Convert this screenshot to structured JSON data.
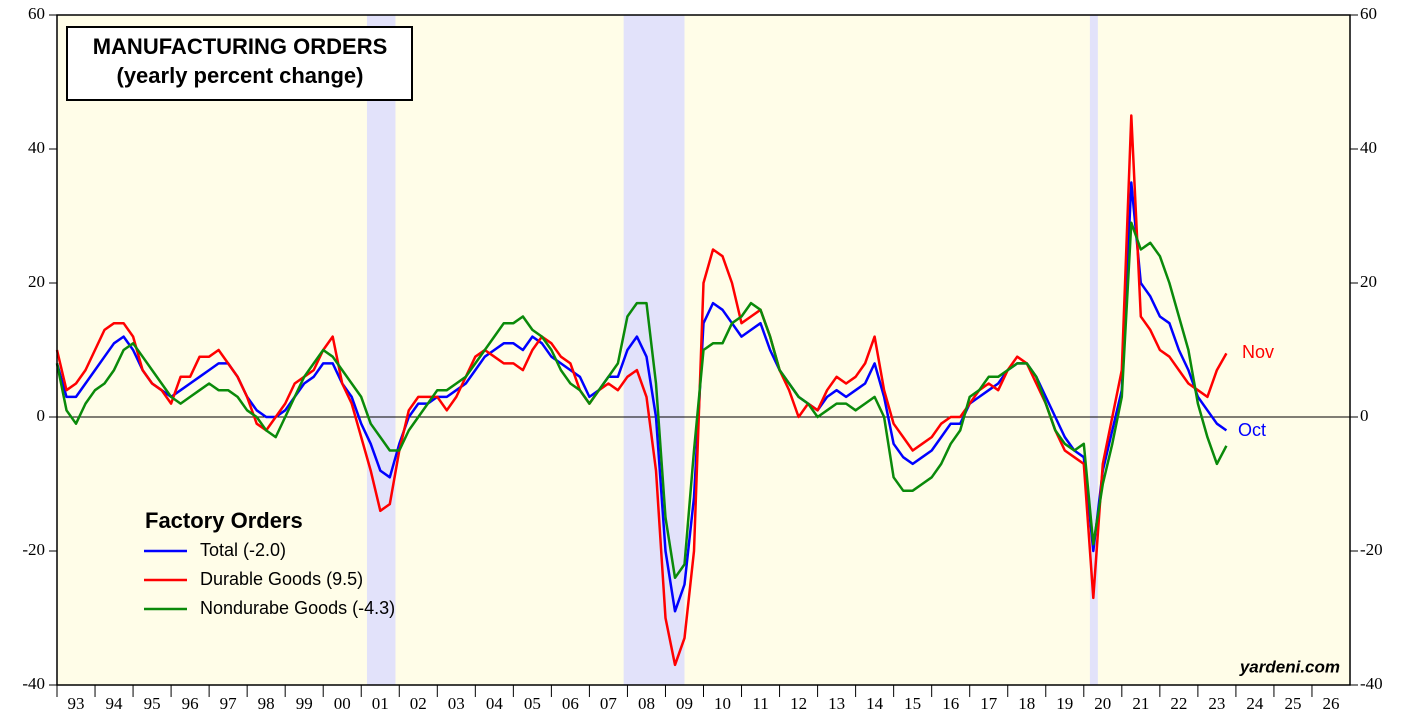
{
  "chart_data": {
    "type": "line",
    "title": "MANUFACTURING ORDERS",
    "subtitle": "(yearly percent change)",
    "legend_title": "Factory Orders",
    "annotations": [
      "Nov",
      "Oct"
    ],
    "source": "yardeni.com",
    "xlim": [
      1993,
      2027
    ],
    "ylim": [
      -40,
      60
    ],
    "yticks": [
      -40,
      -20,
      0,
      20,
      40,
      60
    ],
    "xticks": [
      {
        "value": 1993,
        "label": "93"
      },
      {
        "value": 1994,
        "label": "94"
      },
      {
        "value": 1995,
        "label": "95"
      },
      {
        "value": 1996,
        "label": "96"
      },
      {
        "value": 1997,
        "label": "97"
      },
      {
        "value": 1998,
        "label": "98"
      },
      {
        "value": 1999,
        "label": "99"
      },
      {
        "value": 2000,
        "label": "00"
      },
      {
        "value": 2001,
        "label": "01"
      },
      {
        "value": 2002,
        "label": "02"
      },
      {
        "value": 2003,
        "label": "03"
      },
      {
        "value": 2004,
        "label": "04"
      },
      {
        "value": 2005,
        "label": "05"
      },
      {
        "value": 2006,
        "label": "06"
      },
      {
        "value": 2007,
        "label": "07"
      },
      {
        "value": 2008,
        "label": "08"
      },
      {
        "value": 2009,
        "label": "09"
      },
      {
        "value": 2010,
        "label": "10"
      },
      {
        "value": 2011,
        "label": "11"
      },
      {
        "value": 2012,
        "label": "12"
      },
      {
        "value": 2013,
        "label": "13"
      },
      {
        "value": 2014,
        "label": "14"
      },
      {
        "value": 2015,
        "label": "15"
      },
      {
        "value": 2016,
        "label": "16"
      },
      {
        "value": 2017,
        "label": "17"
      },
      {
        "value": 2018,
        "label": "18"
      },
      {
        "value": 2019,
        "label": "19"
      },
      {
        "value": 2020,
        "label": "20"
      },
      {
        "value": 2021,
        "label": "21"
      },
      {
        "value": 2022,
        "label": "22"
      },
      {
        "value": 2023,
        "label": "23"
      },
      {
        "value": 2024,
        "label": "24"
      },
      {
        "value": 2025,
        "label": "25"
      },
      {
        "value": 2026,
        "label": "26"
      }
    ],
    "recessions": [
      [
        2001.15,
        2001.9
      ],
      [
        2007.9,
        2009.5
      ],
      [
        2020.16,
        2020.37
      ]
    ],
    "x": [
      1993,
      1993.25,
      1993.5,
      1993.75,
      1994,
      1994.25,
      1994.5,
      1994.75,
      1995,
      1995.25,
      1995.5,
      1995.75,
      1996,
      1996.25,
      1996.5,
      1996.75,
      1997,
      1997.25,
      1997.5,
      1997.75,
      1998,
      1998.25,
      1998.5,
      1998.75,
      1999,
      1999.25,
      1999.5,
      1999.75,
      2000,
      2000.25,
      2000.5,
      2000.75,
      2001,
      2001.25,
      2001.5,
      2001.75,
      2002,
      2002.25,
      2002.5,
      2002.75,
      2003,
      2003.25,
      2003.5,
      2003.75,
      2004,
      2004.25,
      2004.5,
      2004.75,
      2005,
      2005.25,
      2005.5,
      2005.75,
      2006,
      2006.25,
      2006.5,
      2006.75,
      2007,
      2007.25,
      2007.5,
      2007.75,
      2008,
      2008.25,
      2008.5,
      2008.75,
      2009,
      2009.25,
      2009.5,
      2009.75,
      2010,
      2010.25,
      2010.5,
      2010.75,
      2011,
      2011.25,
      2011.5,
      2011.75,
      2012,
      2012.25,
      2012.5,
      2012.75,
      2013,
      2013.25,
      2013.5,
      2013.75,
      2014,
      2014.25,
      2014.5,
      2014.75,
      2015,
      2015.25,
      2015.5,
      2015.75,
      2016,
      2016.25,
      2016.5,
      2016.75,
      2017,
      2017.25,
      2017.5,
      2017.75,
      2018,
      2018.25,
      2018.5,
      2018.75,
      2019,
      2019.25,
      2019.5,
      2019.75,
      2020,
      2020.25,
      2020.5,
      2020.75,
      2021,
      2021.25,
      2021.5,
      2021.75,
      2022,
      2022.25,
      2022.5,
      2022.75,
      2023,
      2023.25,
      2023.5,
      2023.75
    ],
    "series": [
      {
        "name": "Total (-2.0)",
        "color": "#0000ff",
        "values": [
          8,
          3,
          3,
          5,
          7,
          9,
          11,
          12,
          10,
          7,
          5,
          4,
          3,
          4,
          5,
          6,
          7,
          8,
          8,
          6,
          3,
          1,
          0,
          0,
          1,
          3,
          5,
          6,
          8,
          8,
          5,
          3,
          -1,
          -4,
          -8,
          -9,
          -4,
          0,
          2,
          2,
          3,
          3,
          4,
          5,
          7,
          9,
          10,
          11,
          11,
          10,
          12,
          11,
          9,
          8,
          7,
          6,
          3,
          4,
          6,
          6,
          10,
          12,
          9,
          0,
          -20,
          -29,
          -25,
          -12,
          14,
          17,
          16,
          14,
          12,
          13,
          14,
          10,
          7,
          5,
          3,
          2,
          1,
          3,
          4,
          3,
          4,
          5,
          8,
          3,
          -4,
          -6,
          -7,
          -6,
          -5,
          -3,
          -1,
          -1,
          2,
          3,
          4,
          5,
          7,
          8,
          8,
          6,
          3,
          0,
          -3,
          -5,
          -6,
          -20,
          -8,
          -2,
          4,
          35,
          20,
          18,
          15,
          14,
          10,
          7,
          3,
          1,
          -1,
          -2
        ]
      },
      {
        "name": "Durable Goods (9.5)",
        "color": "#ff0000",
        "values": [
          10,
          4,
          5,
          7,
          10,
          13,
          14,
          14,
          12,
          7,
          5,
          4,
          2,
          6,
          6,
          9,
          9,
          10,
          8,
          6,
          3,
          -1,
          -2,
          0,
          2,
          5,
          6,
          7,
          10,
          12,
          5,
          2,
          -3,
          -8,
          -14,
          -13,
          -5,
          1,
          3,
          3,
          3,
          1,
          3,
          6,
          9,
          10,
          9,
          8,
          8,
          7,
          10,
          12,
          11,
          9,
          8,
          4,
          2,
          4,
          5,
          4,
          6,
          7,
          3,
          -8,
          -30,
          -37,
          -33,
          -20,
          20,
          25,
          24,
          20,
          14,
          15,
          16,
          12,
          7,
          4,
          0,
          2,
          1,
          4,
          6,
          5,
          6,
          8,
          12,
          4,
          -1,
          -3,
          -5,
          -4,
          -3,
          -1,
          0,
          0,
          2,
          4,
          5,
          4,
          7,
          9,
          8,
          5,
          2,
          -2,
          -5,
          -6,
          -7,
          -27,
          -7,
          0,
          7,
          45,
          15,
          13,
          10,
          9,
          7,
          5,
          4,
          3,
          7,
          9.5
        ]
      },
      {
        "name": "Nondurabe Goods (-4.3)",
        "color": "#0a8a0a",
        "values": [
          8,
          1,
          -1,
          2,
          4,
          5,
          7,
          10,
          11,
          9,
          7,
          5,
          3,
          2,
          3,
          4,
          5,
          4,
          4,
          3,
          1,
          0,
          -2,
          -3,
          0,
          3,
          6,
          8,
          10,
          9,
          7,
          5,
          3,
          -1,
          -3,
          -5,
          -5,
          -2,
          0,
          2,
          4,
          4,
          5,
          6,
          8,
          10,
          12,
          14,
          14,
          15,
          13,
          12,
          10,
          7,
          5,
          4,
          2,
          4,
          6,
          8,
          15,
          17,
          17,
          5,
          -15,
          -24,
          -22,
          -5,
          10,
          11,
          11,
          14,
          15,
          17,
          16,
          12,
          7,
          5,
          3,
          2,
          0,
          1,
          2,
          2,
          1,
          2,
          3,
          0,
          -9,
          -11,
          -11,
          -10,
          -9,
          -7,
          -4,
          -2,
          3,
          4,
          6,
          6,
          7,
          8,
          8,
          6,
          2,
          -2,
          -4,
          -5,
          -4,
          -19,
          -10,
          -4,
          3,
          29,
          25,
          26,
          24,
          20,
          15,
          10,
          2,
          -3,
          -7,
          -4.3
        ]
      }
    ]
  }
}
